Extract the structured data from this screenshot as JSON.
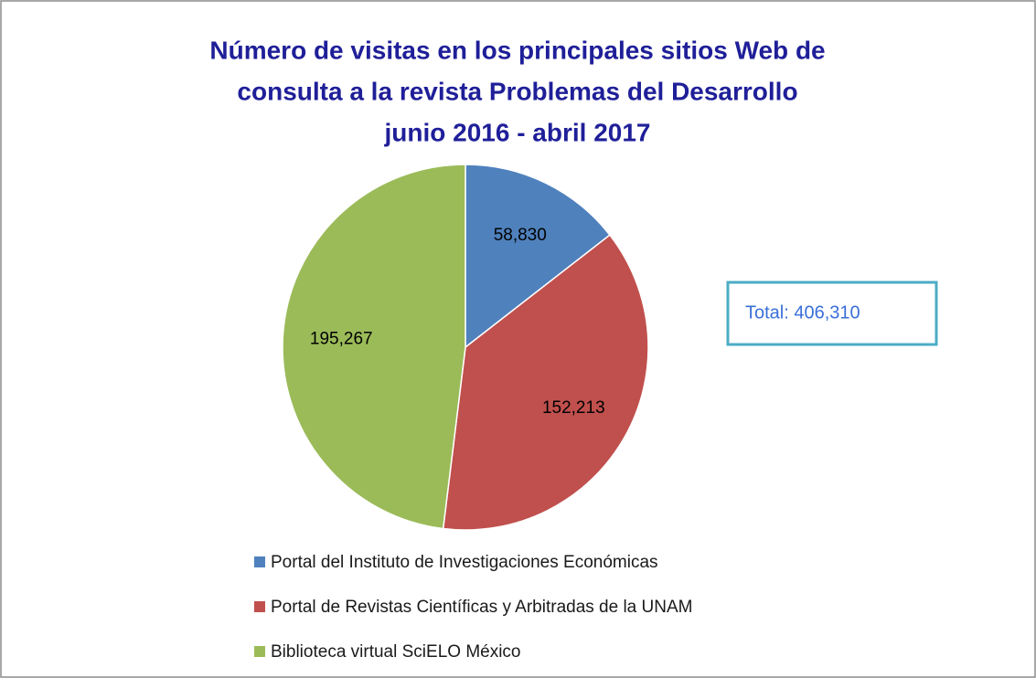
{
  "chart_data": {
    "type": "pie",
    "title": [
      "Número de visitas en los principales sitios Web de",
      "consulta a la revista Problemas del Desarrollo",
      "junio 2016 - abril 2017"
    ],
    "categories": [
      "Portal del Instituto de Investigaciones Económicas",
      "Portal de Revistas Científicas y Arbitradas de la UNAM",
      "Biblioteca virtual SciELO México"
    ],
    "values": [
      58830,
      152213,
      195267
    ],
    "value_labels": [
      "58,830",
      "152,213",
      "195,267"
    ],
    "colors": [
      "#4f81bd",
      "#c0504d",
      "#9bbb59"
    ],
    "annotation": "Total: 406,310",
    "legend": "bottom"
  }
}
